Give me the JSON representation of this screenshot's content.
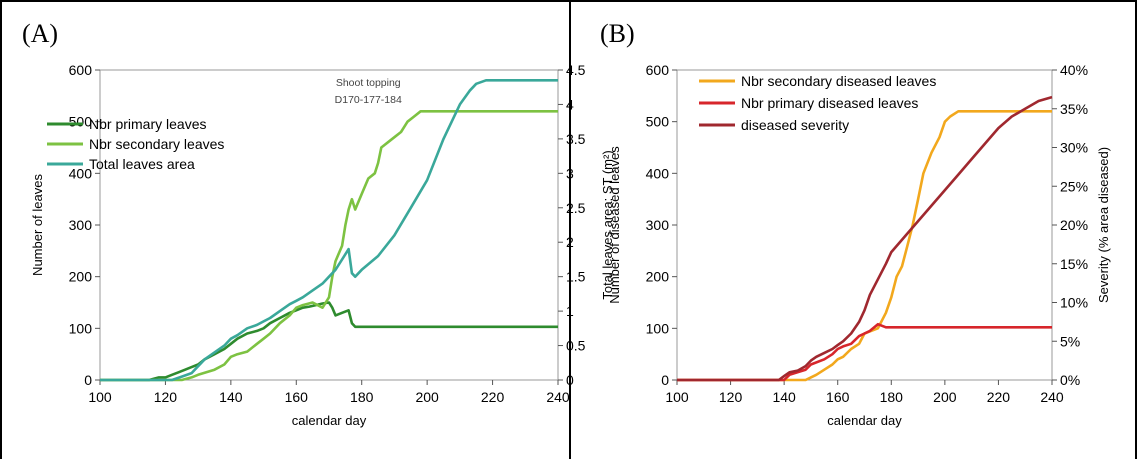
{
  "chart_data": [
    {
      "panel_label": "(A)",
      "type": "line",
      "xlabel": "calendar day",
      "ylabel": "Number of leaves",
      "y2label": "Total leaves area: ST (m²)",
      "xlim": [
        100,
        240
      ],
      "ylim": [
        0,
        600
      ],
      "y2lim": [
        0,
        4.5
      ],
      "xticks": [
        "100",
        "120",
        "140",
        "160",
        "180",
        "200",
        "220",
        "240"
      ],
      "yticks": [
        "0",
        "100",
        "200",
        "300",
        "400",
        "500",
        "600"
      ],
      "y2ticks": [
        "0",
        "0.5",
        "1",
        "1.5",
        "2",
        "2.5",
        "3",
        "3.5",
        "4",
        "4.5"
      ],
      "annotation": [
        "Shoot topping",
        "D170-177-184"
      ],
      "legend_position": "top-left",
      "series": [
        {
          "name": "Nbr primary leaves",
          "axis": "left",
          "color": "#2e8b2e",
          "x": [
            100,
            115,
            118,
            120,
            122,
            124,
            126,
            128,
            130,
            132,
            135,
            138,
            140,
            142,
            145,
            148,
            150,
            152,
            155,
            158,
            160,
            162,
            164,
            166,
            168,
            170,
            171,
            172,
            174,
            176,
            177,
            178,
            180,
            200,
            240
          ],
          "y": [
            0,
            0,
            5,
            5,
            10,
            15,
            20,
            25,
            30,
            40,
            50,
            60,
            70,
            80,
            90,
            95,
            100,
            110,
            120,
            130,
            135,
            140,
            142,
            145,
            148,
            150,
            140,
            125,
            130,
            135,
            110,
            103,
            103,
            103,
            103
          ]
        },
        {
          "name": "Nbr secondary leaves",
          "axis": "left",
          "color": "#7dc242",
          "x": [
            100,
            125,
            128,
            130,
            135,
            138,
            140,
            142,
            145,
            148,
            150,
            152,
            155,
            158,
            160,
            162,
            165,
            168,
            170,
            171,
            172,
            174,
            175,
            176,
            177,
            178,
            180,
            182,
            184,
            185,
            186,
            188,
            190,
            192,
            194,
            196,
            198,
            200,
            210,
            240
          ],
          "y": [
            0,
            0,
            5,
            10,
            20,
            30,
            45,
            50,
            55,
            70,
            80,
            90,
            110,
            125,
            140,
            145,
            150,
            140,
            160,
            200,
            230,
            260,
            300,
            330,
            350,
            330,
            360,
            390,
            400,
            420,
            450,
            460,
            470,
            480,
            500,
            510,
            520,
            520,
            520,
            520
          ]
        },
        {
          "name": "Total leaves area",
          "axis": "right",
          "color": "#3aa89a",
          "x": [
            100,
            122,
            125,
            128,
            130,
            132,
            135,
            138,
            140,
            142,
            145,
            148,
            150,
            152,
            155,
            158,
            160,
            162,
            165,
            168,
            170,
            172,
            174,
            176,
            177,
            178,
            180,
            185,
            190,
            195,
            200,
            205,
            210,
            213,
            215,
            218,
            220,
            240
          ],
          "y": [
            0,
            0,
            0.05,
            0.1,
            0.2,
            0.3,
            0.4,
            0.5,
            0.6,
            0.65,
            0.75,
            0.8,
            0.85,
            0.9,
            1.0,
            1.1,
            1.15,
            1.2,
            1.3,
            1.4,
            1.5,
            1.6,
            1.75,
            1.9,
            1.55,
            1.5,
            1.6,
            1.8,
            2.1,
            2.5,
            2.9,
            3.5,
            4.0,
            4.2,
            4.3,
            4.35,
            4.35,
            4.35
          ]
        }
      ]
    },
    {
      "panel_label": "(B)",
      "type": "line",
      "xlabel": "calendar day",
      "ylabel": "Number of diseased leaves",
      "y2label": "Severity (% area diseased)",
      "xlim": [
        100,
        240
      ],
      "ylim": [
        0,
        600
      ],
      "y2lim": [
        0,
        40
      ],
      "xticks": [
        "100",
        "120",
        "140",
        "160",
        "180",
        "200",
        "220",
        "240"
      ],
      "yticks": [
        "0",
        "100",
        "200",
        "300",
        "400",
        "500",
        "600"
      ],
      "y2ticks": [
        "0%",
        "5%",
        "10%",
        "15%",
        "20%",
        "25%",
        "30%",
        "35%",
        "40%"
      ],
      "legend_position": "top-left",
      "series": [
        {
          "name": "Nbr secondary diseased leaves",
          "axis": "left",
          "color": "#f2a81d",
          "x": [
            100,
            148,
            150,
            152,
            155,
            158,
            160,
            162,
            165,
            168,
            170,
            175,
            178,
            180,
            182,
            184,
            186,
            188,
            190,
            192,
            195,
            198,
            200,
            202,
            205,
            208,
            210,
            215,
            240
          ],
          "y": [
            0,
            0,
            5,
            10,
            20,
            30,
            40,
            45,
            60,
            70,
            90,
            100,
            130,
            160,
            200,
            220,
            260,
            300,
            350,
            400,
            440,
            470,
            500,
            510,
            520,
            520,
            520,
            520,
            520
          ]
        },
        {
          "name": "Nbr primary diseased leaves",
          "axis": "left",
          "color": "#d7262b",
          "x": [
            100,
            140,
            142,
            145,
            148,
            150,
            155,
            158,
            160,
            162,
            165,
            168,
            170,
            172,
            175,
            178,
            180,
            200,
            240
          ],
          "y": [
            0,
            0,
            10,
            15,
            20,
            30,
            40,
            50,
            60,
            65,
            70,
            85,
            90,
            95,
            108,
            102,
            102,
            102,
            102
          ]
        },
        {
          "name": "diseased severity",
          "axis": "right",
          "color": "#a0282f",
          "x": [
            100,
            138,
            140,
            142,
            145,
            148,
            150,
            152,
            155,
            158,
            160,
            162,
            165,
            168,
            170,
            172,
            175,
            178,
            180,
            185,
            190,
            195,
            200,
            205,
            210,
            215,
            220,
            225,
            230,
            235,
            240
          ],
          "y": [
            0,
            0,
            0.5,
            1,
            1.2,
            1.8,
            2.5,
            3,
            3.5,
            4,
            4.5,
            5,
            6,
            7.5,
            9,
            11,
            13,
            15,
            16.5,
            18.5,
            20.5,
            22.5,
            24.5,
            26.5,
            28.5,
            30.5,
            32.5,
            34,
            35,
            36,
            36.5
          ]
        }
      ]
    }
  ]
}
